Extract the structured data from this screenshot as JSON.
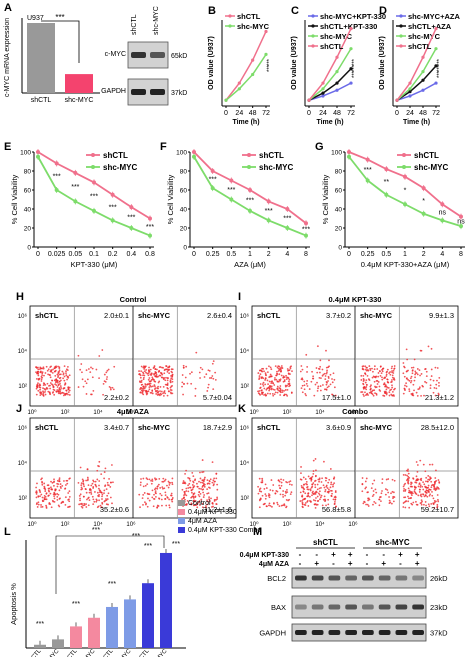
{
  "colors": {
    "shctl": "#f0708c",
    "shmyc": "#7ddc6a",
    "black": "#111111",
    "blue": "#6a6ae8",
    "control": "#999999",
    "kpt": "#f4899f",
    "aza": "#7e9be6",
    "combo": "#3a3ad8",
    "dot": "#ee2a30",
    "grid": "#888888"
  },
  "panels": {
    "A": "A",
    "B": "B",
    "C": "C",
    "D": "D",
    "E": "E",
    "F": "F",
    "G": "G",
    "H": "H",
    "I": "I",
    "J": "J",
    "K": "K",
    "L": "L",
    "M": "M"
  },
  "panel_a": {
    "cell": "U937",
    "ylabel": "c-MYC mRNA expression",
    "sig": "***",
    "categories": [
      "shCTL",
      "shc-MYC"
    ],
    "values": [
      1.0,
      0.27
    ],
    "colors": [
      "#999999",
      "#f4436e"
    ],
    "blot_cols": [
      "shCTL",
      "shc-MYC"
    ],
    "blot_rows": [
      {
        "name": "c-MYC",
        "size": "65kD"
      },
      {
        "name": "GAPDH",
        "size": "37kD"
      }
    ]
  },
  "chart_data": [
    {
      "id": "B",
      "type": "line",
      "x": [
        0,
        24,
        48,
        72
      ],
      "xlabel": "Time (h)",
      "ylabel": "OD value (U937)",
      "xticks": [
        "0",
        "24",
        "48",
        "72"
      ],
      "ylim": [
        0,
        3
      ],
      "series": [
        {
          "name": "shCTL",
          "values": [
            0.2,
            0.8,
            1.6,
            2.6
          ]
        },
        {
          "name": "shc-MYC",
          "values": [
            0.2,
            0.6,
            1.1,
            1.8
          ]
        }
      ],
      "annotations": [
        "***",
        "***"
      ]
    },
    {
      "id": "C",
      "type": "line",
      "x": [
        0,
        24,
        48,
        72
      ],
      "xlabel": "Time (h)",
      "ylabel": "OD value (U937)",
      "xticks": [
        "0",
        "24",
        "48",
        "72"
      ],
      "ylim": [
        0,
        3
      ],
      "series": [
        {
          "name": "shc-MYC+KPT-330",
          "values": [
            0.2,
            0.35,
            0.55,
            0.8
          ]
        },
        {
          "name": "shCTL+KPT-330",
          "values": [
            0.2,
            0.45,
            0.8,
            1.3
          ]
        },
        {
          "name": "shc-MYC",
          "values": [
            0.2,
            0.6,
            1.2,
            2.0
          ]
        },
        {
          "name": "shCTL",
          "values": [
            0.2,
            0.8,
            1.7,
            2.7
          ]
        }
      ],
      "annotations": [
        "***",
        "***",
        "***"
      ]
    },
    {
      "id": "D",
      "type": "line",
      "x": [
        0,
        24,
        48,
        72
      ],
      "xlabel": "Time (h)",
      "ylabel": "OD value (U937)",
      "xticks": [
        "0",
        "24",
        "48",
        "72"
      ],
      "ylim": [
        0,
        3
      ],
      "series": [
        {
          "name": "shc-MYC+AZA",
          "values": [
            0.2,
            0.35,
            0.55,
            0.8
          ]
        },
        {
          "name": "shCTL+AZA",
          "values": [
            0.2,
            0.5,
            0.9,
            1.4
          ]
        },
        {
          "name": "shc-MYC",
          "values": [
            0.2,
            0.6,
            1.2,
            2.0
          ]
        },
        {
          "name": "shCTL",
          "values": [
            0.2,
            0.8,
            1.7,
            2.7
          ]
        }
      ],
      "annotations": [
        "***",
        "***",
        "***"
      ]
    },
    {
      "id": "E",
      "type": "line",
      "xticks": [
        "0",
        "0.025",
        "0.05",
        "0.1",
        "0.2",
        "0.4",
        "0.8"
      ],
      "xlabel": "KPT-330 (μM)",
      "ylabel": "% Cell Viability",
      "ylim": [
        0,
        100
      ],
      "yticks": [
        "0",
        "20",
        "40",
        "60",
        "80",
        "100"
      ],
      "series": [
        {
          "name": "shCTL",
          "values": [
            100,
            88,
            78,
            68,
            55,
            42,
            30
          ]
        },
        {
          "name": "shc-MYC",
          "values": [
            95,
            60,
            48,
            38,
            28,
            20,
            12
          ]
        }
      ],
      "annotations": [
        "***",
        "***",
        "***",
        "***",
        "***",
        "***"
      ]
    },
    {
      "id": "F",
      "type": "line",
      "xticks": [
        "0",
        "0.25",
        "0.5",
        "1",
        "2",
        "4",
        "8"
      ],
      "xlabel": "AZA (μM)",
      "ylabel": "% Cell Viability",
      "ylim": [
        0,
        100
      ],
      "yticks": [
        "0",
        "20",
        "40",
        "60",
        "80",
        "100"
      ],
      "series": [
        {
          "name": "shCTL",
          "values": [
            100,
            80,
            70,
            60,
            48,
            40,
            25
          ]
        },
        {
          "name": "shc-MYC",
          "values": [
            95,
            62,
            50,
            38,
            28,
            20,
            12
          ]
        }
      ],
      "annotations": [
        "***",
        "***",
        "***",
        "***",
        "***",
        "***"
      ]
    },
    {
      "id": "G",
      "type": "line",
      "xticks": [
        "0",
        "0.25",
        "0.5",
        "1",
        "2",
        "4",
        "8"
      ],
      "xlabel": "0.4μM KPT-330+AZA (μM)",
      "ylabel": "% Cell Viability",
      "ylim": [
        0,
        100
      ],
      "yticks": [
        "0",
        "20",
        "40",
        "60",
        "80",
        "100"
      ],
      "series": [
        {
          "name": "shCTL",
          "values": [
            100,
            92,
            82,
            74,
            62,
            45,
            32
          ]
        },
        {
          "name": "shc-MYC",
          "values": [
            95,
            70,
            55,
            45,
            35,
            28,
            22
          ]
        }
      ],
      "annotations": [
        "***",
        "**",
        "*",
        "*",
        "ns",
        "ns"
      ]
    },
    {
      "id": "L",
      "type": "bar",
      "ylabel": "Apoptosis %",
      "xticks": [
        "shCTL",
        "shc-MYC",
        "shCTL",
        "shc-MYC",
        "shCTL",
        "shc-MYC",
        "shCTL",
        "shc-MYC"
      ],
      "ylim": [
        0,
        100
      ],
      "series": [
        {
          "name": "Control",
          "values": [
            3,
            8
          ]
        },
        {
          "name": "0.4μM KPT-330",
          "values": [
            20,
            28
          ]
        },
        {
          "name": "4μM AZA",
          "values": [
            38,
            45
          ]
        },
        {
          "name": "0.4μM KPT-330 Combo",
          "values": [
            60,
            88
          ]
        }
      ],
      "annotations": [
        "***",
        "***",
        "***",
        "***",
        "***",
        "***",
        "***"
      ]
    }
  ],
  "flow": [
    {
      "id": "H",
      "title": "Control",
      "left": {
        "name": "shCTL",
        "ur": "2.0±0.1",
        "lr": "2.2±0.2"
      },
      "right": {
        "name": "shc-MYC",
        "ur": "2.6±0.4",
        "lr": "5.7±0.04"
      }
    },
    {
      "id": "I",
      "title": "0.4μM KPT-330",
      "left": {
        "name": "shCTL",
        "ur": "3.7±0.2",
        "lr": "17.5±1.0"
      },
      "right": {
        "name": "shc-MYC",
        "ur": "9.9±1.3",
        "lr": "21.3±1.2"
      }
    },
    {
      "id": "J",
      "title": "4μM AZA",
      "left": {
        "name": "shCTL",
        "ur": "3.4±0.7",
        "lr": "35.2±0.6"
      },
      "right": {
        "name": "shc-MYC",
        "ur": "18.7±2.9",
        "lr": "31.2±1.6"
      }
    },
    {
      "id": "K",
      "title": "Combo",
      "left": {
        "name": "shCTL",
        "ur": "3.6±0.9",
        "lr": "56.8±5.8"
      },
      "right": {
        "name": "shc-MYC",
        "ur": "28.5±12.0",
        "lr": "59.2±10.7"
      }
    }
  ],
  "flow_axis": {
    "y": [
      "10⁶",
      "10⁴",
      "10²"
    ],
    "x": [
      "10⁰",
      "10²",
      "10⁴",
      "10⁶"
    ]
  },
  "panel_m": {
    "groups": [
      "shCTL",
      "shc-MYC"
    ],
    "treat": [
      {
        "name": "0.4μM KPT-330",
        "marks": [
          "-",
          "-",
          "+",
          "+",
          "-",
          "-",
          "+",
          "+"
        ]
      },
      {
        "name": "4μM AZA",
        "marks": [
          "-",
          "+",
          "-",
          "+",
          "-",
          "+",
          "-",
          "+"
        ]
      }
    ],
    "rows": [
      {
        "name": "BCL2",
        "size": "26kD"
      },
      {
        "name": "BAX",
        "size": "23kD"
      },
      {
        "name": "GAPDH",
        "size": "37kD"
      }
    ]
  }
}
